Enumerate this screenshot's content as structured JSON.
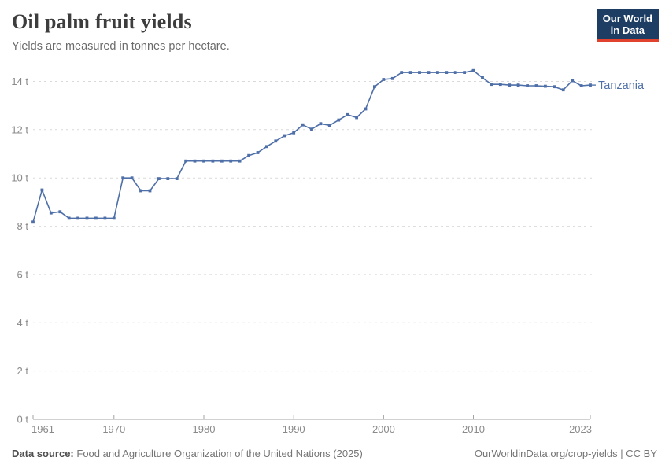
{
  "header": {
    "title": "Oil palm fruit yields",
    "subtitle": "Yields are measured in tonnes per hectare.",
    "logo_line1": "Our World",
    "logo_line2": "in Data",
    "logo_bg": "#1d3d63",
    "logo_accent": "#e0422d"
  },
  "chart_data": {
    "type": "line",
    "title": "Oil palm fruit yields",
    "subtitle": "Yields are measured in tonnes per hectare.",
    "unit_suffix": " t",
    "ylim": [
      0,
      14
    ],
    "y_ticks": [
      0,
      2,
      4,
      6,
      8,
      10,
      12,
      14
    ],
    "x_ticks": [
      1961,
      1970,
      1980,
      1990,
      2000,
      2010,
      2023
    ],
    "xlim": [
      1961,
      2023
    ],
    "grid": "horizontal-dashed",
    "grid_color": "#d9d9d9",
    "axis_color": "#a3a3a3",
    "axis_label_color": "#8a8a8a",
    "legend_position": "end-of-line-label",
    "series": [
      {
        "name": "Tanzania",
        "color": "#4e6fa8",
        "x": [
          1961,
          1962,
          1963,
          1964,
          1965,
          1966,
          1967,
          1968,
          1969,
          1970,
          1971,
          1972,
          1973,
          1974,
          1975,
          1976,
          1977,
          1978,
          1979,
          1980,
          1981,
          1982,
          1983,
          1984,
          1985,
          1986,
          1987,
          1988,
          1989,
          1990,
          1991,
          1992,
          1993,
          1994,
          1995,
          1996,
          1997,
          1998,
          1999,
          2000,
          2001,
          2002,
          2003,
          2004,
          2005,
          2006,
          2007,
          2008,
          2009,
          2010,
          2011,
          2012,
          2013,
          2014,
          2015,
          2016,
          2017,
          2018,
          2019,
          2020,
          2021,
          2022,
          2023
        ],
        "values": [
          8.17,
          9.5,
          8.55,
          8.6,
          8.33,
          8.33,
          8.33,
          8.33,
          8.33,
          8.33,
          10,
          10,
          9.47,
          9.47,
          9.97,
          9.97,
          9.97,
          10.7,
          10.7,
          10.7,
          10.7,
          10.7,
          10.7,
          10.7,
          10.93,
          11.05,
          11.3,
          11.53,
          11.75,
          11.87,
          12.2,
          12.02,
          12.25,
          12.18,
          12.4,
          12.62,
          12.5,
          12.86,
          13.78,
          14.08,
          14.12,
          14.37,
          14.37,
          14.37,
          14.37,
          14.37,
          14.37,
          14.37,
          14.37,
          14.45,
          14.15,
          13.88,
          13.88,
          13.85,
          13.85,
          13.82,
          13.82,
          13.8,
          13.78,
          13.65,
          14.03,
          13.82,
          13.85
        ]
      }
    ]
  },
  "footer": {
    "source_label": "Data source:",
    "source_rest": "Food and Agriculture Organization of the United Nations (2025)",
    "attribution": "OurWorldinData.org/crop-yields | CC BY"
  }
}
